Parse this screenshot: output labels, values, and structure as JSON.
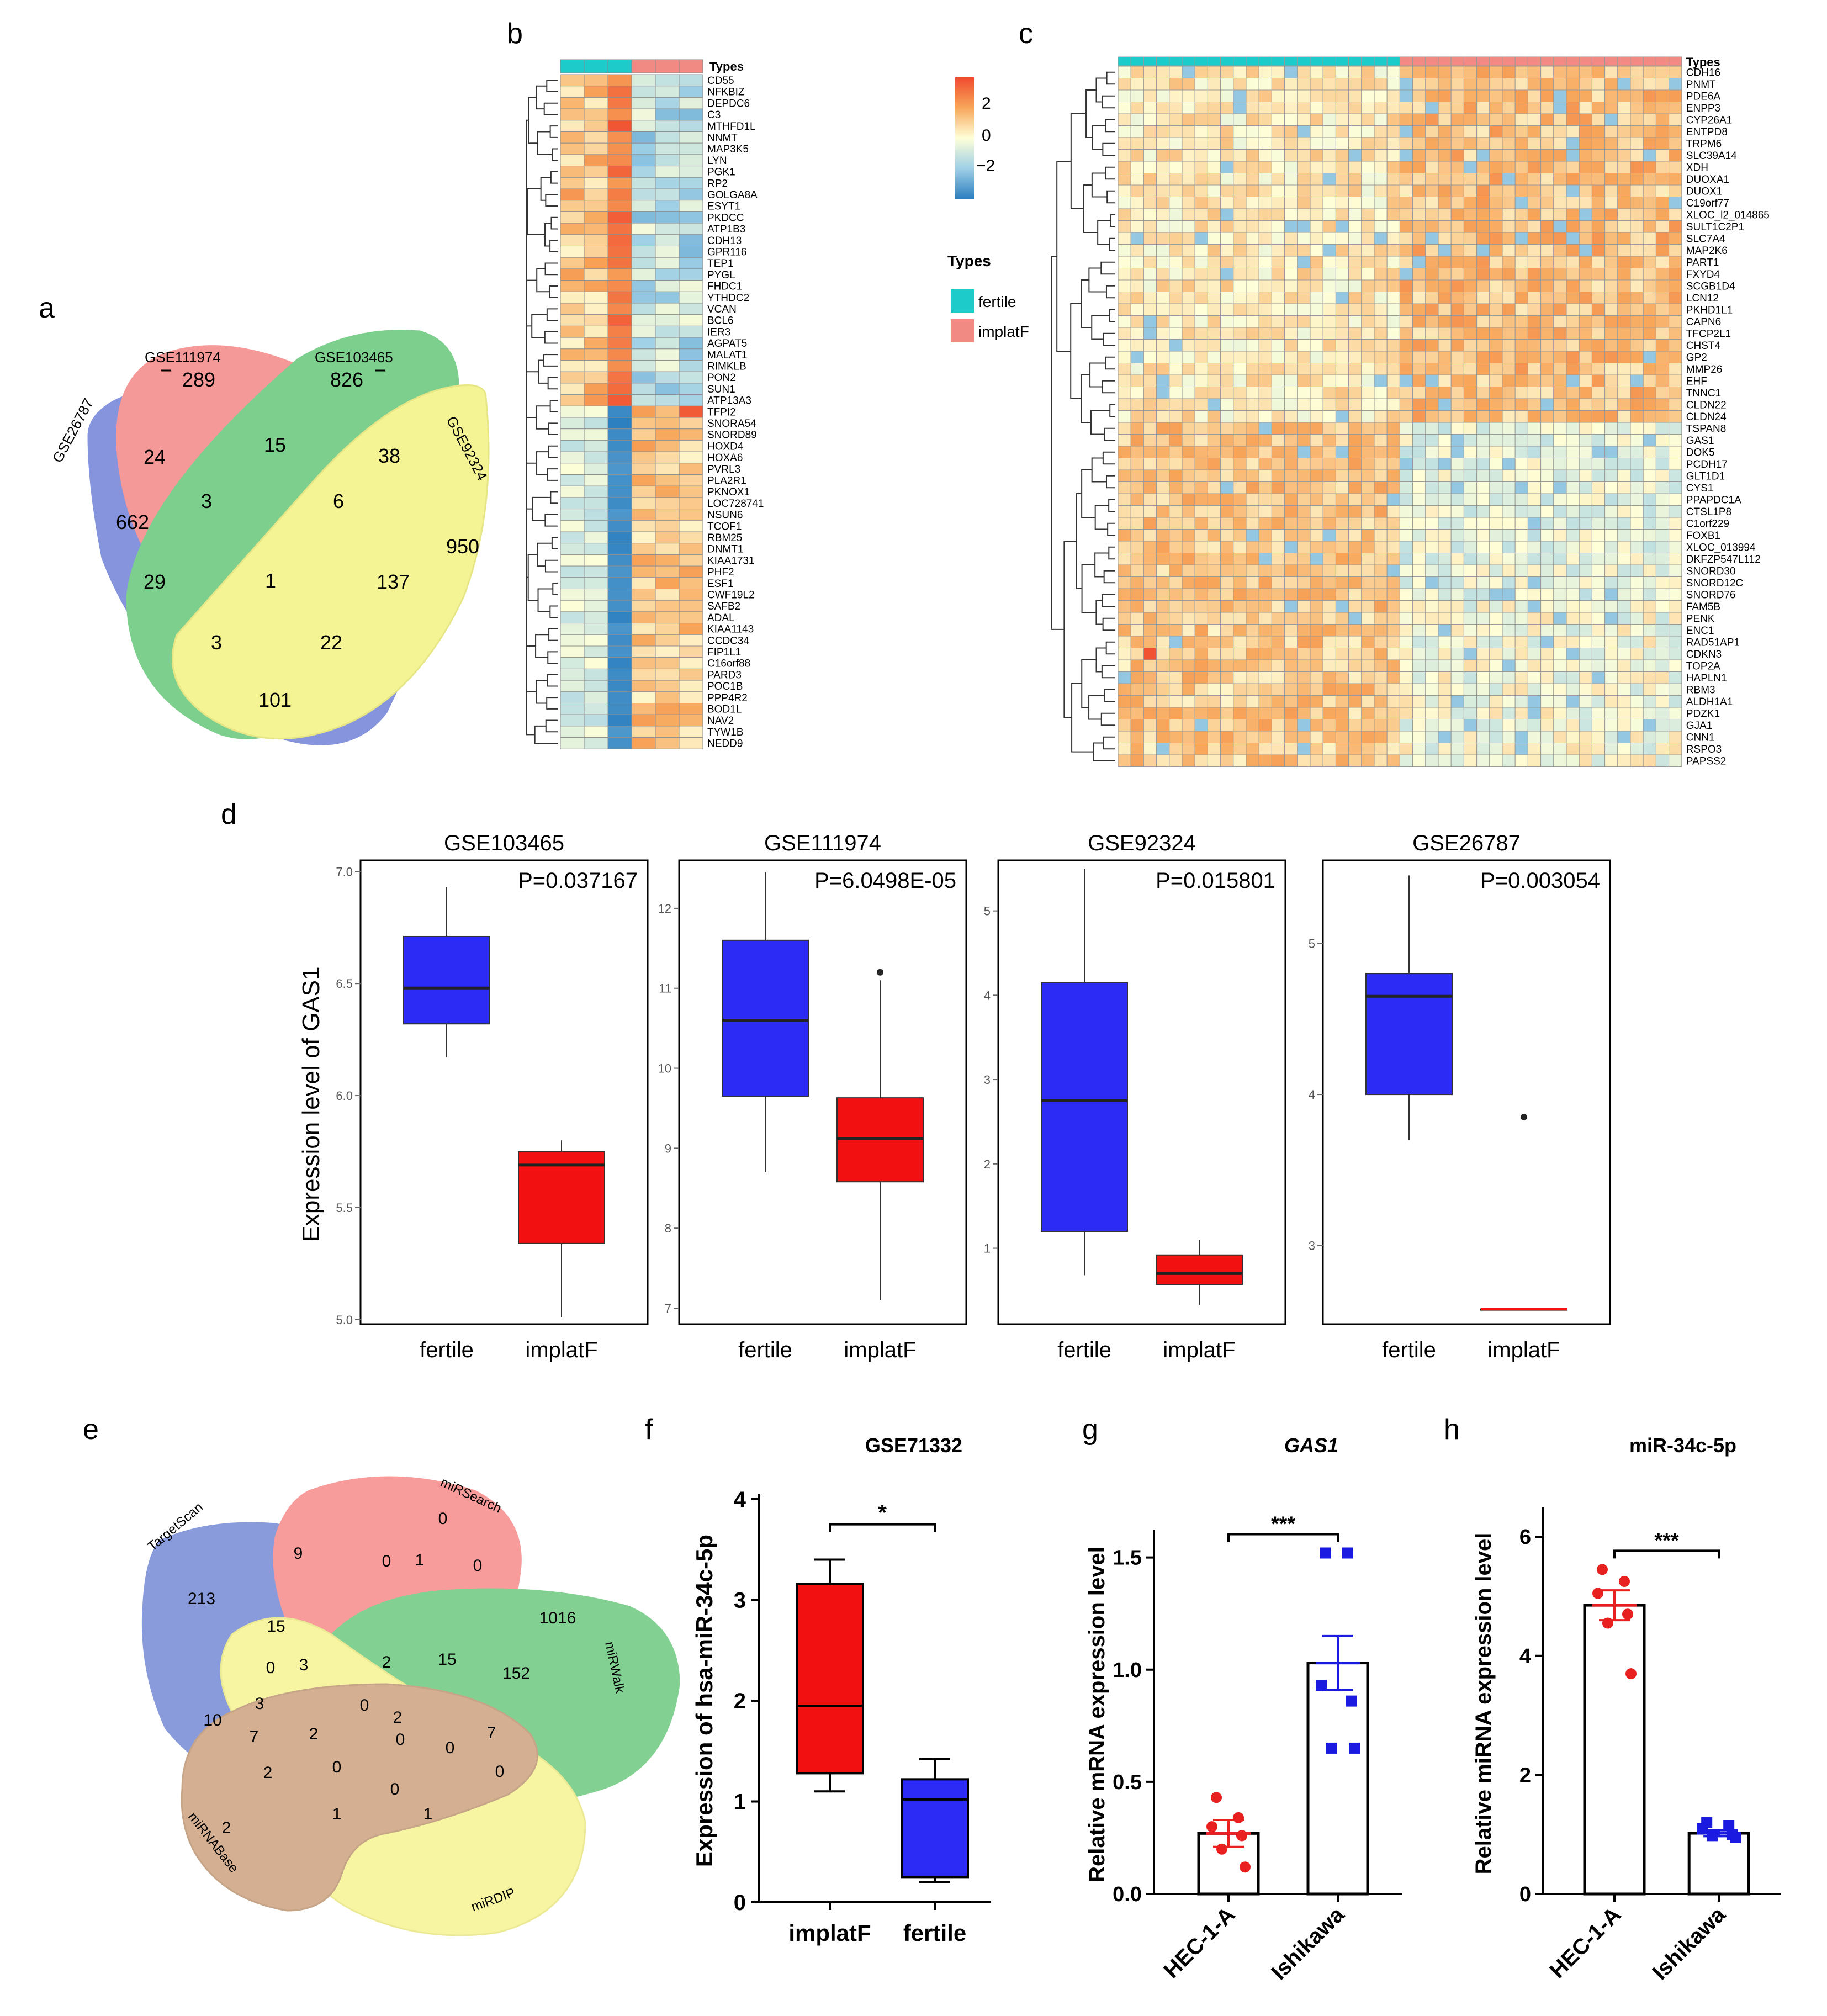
{
  "panel_labels": [
    "a",
    "b",
    "c",
    "d",
    "e",
    "f",
    "g",
    "h"
  ],
  "colors": {
    "fertile": "#1DCBCB",
    "implatF": "#F28A84",
    "hm_low": "#2C7FC0",
    "hm_mid": "#FFFFD8",
    "hm_high": "#F04A2E",
    "box_blue": "#2B2BF5",
    "box_red": "#F21010",
    "dot_red": "#E82020",
    "dot_blue": "#1A1AE0",
    "venn_a": [
      "#3B54C8",
      "#F05A5A",
      "#2FB24A",
      "#EEEE55"
    ],
    "venn_e": [
      "#3C5AC4",
      "#F25A5A",
      "#32B44A",
      "#F2F066",
      "#B87B4A"
    ]
  },
  "venn_a": {
    "set_names": [
      "GSE26787",
      "GSE111974",
      "GSE103465",
      "GSE92324"
    ],
    "counts": {
      "only_26787": "662",
      "only_111974": "289",
      "only_103465": "826",
      "only_92324": "950",
      "a_b": "24",
      "b_c": "15",
      "c_d": "38",
      "a_b_c": "3",
      "b_c_d": "6",
      "a_c": "29",
      "all": "1",
      "b_d": "137",
      "a_c_d": "3",
      "a_b_d": "22",
      "a_d": "101"
    }
  },
  "heatmap_b": {
    "annotation_label": "Types",
    "groups": [
      "fertile",
      "fertile",
      "fertile",
      "implatF",
      "implatF",
      "implatF"
    ],
    "genes": [
      "CD55",
      "NFKBIZ",
      "DEPDC6",
      "C3",
      "MTHFD1L",
      "NNMT",
      "MAP3K5",
      "LYN",
      "PGK1",
      "RP2",
      "GOLGA8A",
      "ESYT1",
      "PKDCC",
      "ATP1B3",
      "CDH13",
      "GPR116",
      "TEP1",
      "PYGL",
      "FHDC1",
      "YTHDC2",
      "VCAN",
      "BCL6",
      "IER3",
      "AGPAT5",
      "MALAT1",
      "RIMKLB",
      "PON2",
      "SUN1",
      "ATP13A3",
      "TFPI2",
      "SNORA54",
      "SNORD89",
      "HOXD4",
      "HOXA6",
      "PVRL3",
      "PLA2R1",
      "PKNOX1",
      "LOC728741",
      "NSUN6",
      "TCOF1",
      "RBM25",
      "DNMT1",
      "KIAA1731",
      "PHF2",
      "ESF1",
      "CWF19L2",
      "SAFB2",
      "ADAL",
      "KIAA1143",
      "CCDC34",
      "FIP1L1",
      "C16orf88",
      "PARD3",
      "POC1B",
      "PPP4R2",
      "BOD1L",
      "NAV2",
      "TYW1B",
      "NEDD9"
    ],
    "legend": {
      "ticks": [
        "2",
        "0",
        "−2"
      ],
      "title": "Types",
      "items": [
        "fertile",
        "implatF"
      ]
    }
  },
  "heatmap_c": {
    "annotation_label": "Types",
    "n_fertile": 22,
    "n_implatF": 22,
    "genes": [
      "CDH16",
      "PNMT",
      "PDE6A",
      "ENPP3",
      "CYP26A1",
      "ENTPD8",
      "TRPM6",
      "SLC39A14",
      "XDH",
      "DUOXA1",
      "DUOX1",
      "C19orf77",
      "XLOC_l2_014865",
      "SULT1C2P1",
      "SLC7A4",
      "MAP2K6",
      "PART1",
      "FXYD4",
      "SCGB1D4",
      "LCN12",
      "PKHD1L1",
      "CAPN6",
      "TFCP2L1",
      "CHST4",
      "GP2",
      "MMP26",
      "EHF",
      "TNNC1",
      "CLDN22",
      "CLDN24",
      "TSPAN8",
      "GAS1",
      "DOK5",
      "PCDH17",
      "GLT1D1",
      "CYS1",
      "PPAPDC1A",
      "CTSL1P8",
      "C1orf229",
      "FOXB1",
      "XLOC_013994",
      "DKFZP547L112",
      "SNORD30",
      "SNORD12C",
      "SNORD76",
      "FAM5B",
      "PENK",
      "ENC1",
      "RAD51AP1",
      "CDKN3",
      "TOP2A",
      "HAPLN1",
      "RBM3",
      "ALDH1A1",
      "PDZK1",
      "GJA1",
      "CNN1",
      "RSPO3",
      "PAPSS2"
    ]
  },
  "panel_d": {
    "ylabel": "Expression level of GAS1",
    "chart_data": [
      {
        "type": "box",
        "title": "GSE103465",
        "pvalue": "P=0.037167",
        "categories": [
          "fertile",
          "implatF"
        ],
        "ylim": [
          4.98,
          7.05
        ],
        "ticks": [
          "5.0",
          "5.5",
          "6.0",
          "6.5",
          "7.0"
        ],
        "boxes": [
          {
            "name": "fertile",
            "min": 6.17,
            "q1": 6.32,
            "median": 6.48,
            "q3": 6.71,
            "max": 6.93,
            "outliers": []
          },
          {
            "name": "implatF",
            "min": 5.01,
            "q1": 5.34,
            "median": 5.69,
            "q3": 5.75,
            "max": 5.8,
            "outliers": []
          }
        ]
      },
      {
        "type": "box",
        "title": "GSE111974",
        "pvalue": "P=6.0498E-05",
        "categories": [
          "fertile",
          "implatF"
        ],
        "ylim": [
          6.8,
          12.6
        ],
        "ticks": [
          "7",
          "8",
          "9",
          "10",
          "11",
          "12"
        ],
        "boxes": [
          {
            "name": "fertile",
            "min": 8.7,
            "q1": 9.65,
            "median": 10.6,
            "q3": 11.6,
            "max": 12.45,
            "outliers": []
          },
          {
            "name": "implatF",
            "min": 7.1,
            "q1": 8.58,
            "median": 9.12,
            "q3": 9.63,
            "max": 11.1,
            "outliers": [
              11.2
            ]
          }
        ]
      },
      {
        "type": "box",
        "title": "GSE92324",
        "pvalue": "P=0.015801",
        "categories": [
          "fertile",
          "implatF"
        ],
        "ylim": [
          0.1,
          5.6
        ],
        "ticks": [
          "1",
          "2",
          "3",
          "4",
          "5"
        ],
        "boxes": [
          {
            "name": "fertile",
            "min": 0.68,
            "q1": 1.2,
            "median": 2.75,
            "q3": 4.15,
            "max": 5.5,
            "outliers": []
          },
          {
            "name": "implatF",
            "min": 0.33,
            "q1": 0.57,
            "median": 0.7,
            "q3": 0.92,
            "max": 1.1,
            "outliers": []
          }
        ]
      },
      {
        "type": "box",
        "title": "GSE26787",
        "pvalue": "P=0.003054",
        "categories": [
          "fertile",
          "implatF"
        ],
        "ylim": [
          2.48,
          5.55
        ],
        "ticks": [
          "3",
          "4",
          "5"
        ],
        "boxes": [
          {
            "name": "fertile",
            "min": 3.7,
            "q1": 4.0,
            "median": 4.65,
            "q3": 4.8,
            "max": 5.45,
            "outliers": []
          },
          {
            "name": "implatF",
            "min": 2.58,
            "q1": 2.58,
            "median": 2.58,
            "q3": 2.58,
            "max": 2.58,
            "outliers": [
              3.85
            ]
          }
        ]
      }
    ]
  },
  "venn_e": {
    "set_names": [
      "TargetScan",
      "miRSearch",
      "miRWalk",
      "miRDIP",
      "miRNABase"
    ],
    "counts": [
      "213",
      "9",
      "0",
      "0",
      "1",
      "0",
      "1016",
      "15",
      "3",
      "0",
      "2",
      "15",
      "152",
      "3",
      "10",
      "2",
      "0",
      "7",
      "7",
      "2",
      "0",
      "0",
      "0",
      "0",
      "2",
      "1",
      "0",
      "2",
      "1"
    ]
  },
  "panel_f": {
    "chart_data": {
      "type": "box",
      "title": "GSE71332",
      "ylabel": "Expression of hsa-miR-34c-5p",
      "categories": [
        "implatF",
        "fertile"
      ],
      "ylim": [
        0,
        4
      ],
      "ticks": [
        "0",
        "1",
        "2",
        "3",
        "4"
      ],
      "sig": "*",
      "boxes": [
        {
          "name": "implatF",
          "min": 1.1,
          "q1": 1.28,
          "median": 1.95,
          "q3": 3.16,
          "max": 3.4
        },
        {
          "name": "fertile",
          "min": 0.2,
          "q1": 0.25,
          "median": 1.02,
          "q3": 1.22,
          "max": 1.42
        }
      ]
    }
  },
  "panel_g": {
    "chart_data": {
      "type": "bar",
      "title": "GAS1",
      "ylabel": "Relative mRNA expression level",
      "categories": [
        "HEC-1-A",
        "Ishikawa"
      ],
      "ylim": [
        0,
        1.6
      ],
      "ticks": [
        "0.0",
        "0.5",
        "1.0",
        "1.5"
      ],
      "sig": "***",
      "values": [
        0.27,
        1.03
      ],
      "errors": [
        0.06,
        0.12
      ],
      "points": [
        [
          0.43,
          0.34,
          0.3,
          0.26,
          0.2,
          0.12
        ],
        [
          1.52,
          1.52,
          0.93,
          0.86,
          0.65,
          0.65
        ]
      ]
    }
  },
  "panel_h": {
    "chart_data": {
      "type": "bar",
      "title": "miR-34c-5p",
      "ylabel": "Relative miRNA expression level",
      "categories": [
        "HEC-1-A",
        "Ishikawa"
      ],
      "ylim": [
        0,
        6.4
      ],
      "ticks": [
        "0",
        "2",
        "4",
        "6"
      ],
      "sig": "***",
      "values": [
        4.85,
        1.02
      ],
      "errors": [
        0.25,
        0.05
      ],
      "points": [
        [
          5.45,
          5.25,
          5.05,
          4.7,
          4.55,
          3.7
        ],
        [
          1.2,
          1.15,
          1.1,
          1.0,
          0.98,
          0.95
        ]
      ]
    }
  }
}
